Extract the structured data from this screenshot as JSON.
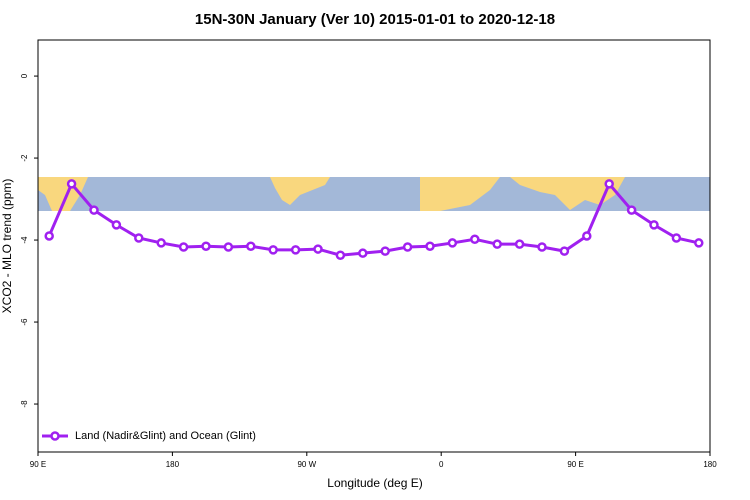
{
  "chart_data": {
    "type": "line",
    "title": "15N-30N January (Ver 10)   2015-01-01 to 2020-12-18",
    "x_label": "Longitude (deg E)",
    "y_label": "XCO2 - MLO trend (ppm)",
    "xlim": [
      90,
      540
    ],
    "xticks": [
      {
        "value": 90,
        "label": "90 E"
      },
      180,
      {
        "value": 270,
        "label": "90 W"
      },
      {
        "value": 360,
        "label": "0"
      },
      {
        "value": 450,
        "label": "90 E"
      },
      {
        "value": 540,
        "label": "180"
      }
    ],
    "ylim": [
      -9.17,
      0.88
    ],
    "yticks": [
      0,
      -2,
      -4,
      -6,
      -8
    ],
    "legend": "bottom-left",
    "x": [
      97.5,
      112.5,
      127.5,
      142.5,
      157.5,
      172.5,
      187.5,
      202.5,
      217.5,
      232.5,
      247.5,
      262.5,
      277.5,
      292.5,
      307.5,
      322.5,
      337.5,
      352.5,
      367.5,
      382.5,
      397.5,
      412.5,
      427.5,
      442.5,
      457.5,
      472.5,
      487.5,
      502.5,
      517.5,
      532.5
    ],
    "series": [
      {
        "name": "Land (Nadir&Glint) and Ocean (Glint)",
        "color": "#a020f0",
        "values": [
          -3.9,
          -2.63,
          -3.27,
          -3.63,
          -3.95,
          -4.07,
          -4.17,
          -4.15,
          -4.17,
          -4.15,
          -4.24,
          -4.24,
          -4.22,
          -4.37,
          -4.32,
          -4.27,
          -4.17,
          -4.15,
          -4.07,
          -3.98,
          -4.1,
          -4.1,
          -4.17,
          -4.27,
          -3.9,
          -2.63,
          -3.27,
          -3.63,
          -3.95,
          -4.07
        ]
      }
    ]
  }
}
